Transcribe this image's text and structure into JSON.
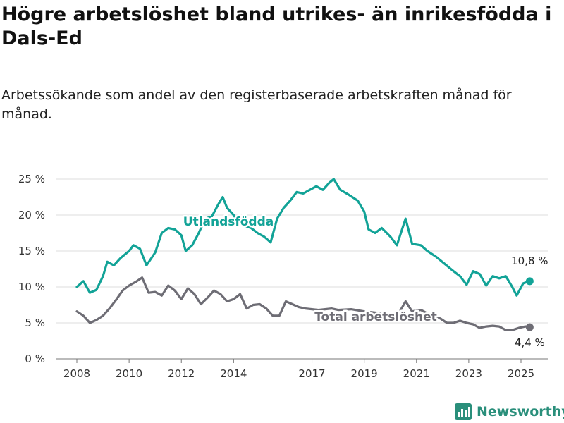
{
  "colors": {
    "foreign": "#12a397",
    "total": "#6e6d75",
    "brand": "#2a8f7b"
  },
  "chart_data": {
    "type": "line",
    "title": "Högre arbetslöshet bland utrikes- än inrikesfödda i Dals-Ed",
    "subtitle": "Arbetssökande som andel av den registerbaserade arbetskraften månad för månad.",
    "ylim": [
      0,
      25
    ],
    "y_ticks": [
      "0 %",
      "5 %",
      "10 %",
      "15 %",
      "20 %",
      "25 %"
    ],
    "y_tick_values": [
      0,
      5,
      10,
      15,
      20,
      25
    ],
    "x_ticks": [
      "2008",
      "2010",
      "2012",
      "2014",
      "2017",
      "2019",
      "2021",
      "2023",
      "2025"
    ],
    "x_tick_values": [
      "2008-01",
      "2010-01",
      "2012-01",
      "2014-01",
      "2017-01",
      "2019-01",
      "2021-01",
      "2023-01",
      "2025-01"
    ],
    "grid": true,
    "series": [
      {
        "name": "Utlandsfödda",
        "end_label": "10,8 %",
        "points": [
          [
            "2008-01",
            10.0
          ],
          [
            "2008-04",
            10.8
          ],
          [
            "2008-07",
            9.2
          ],
          [
            "2008-10",
            9.6
          ],
          [
            "2009-01",
            11.5
          ],
          [
            "2009-03",
            13.5
          ],
          [
            "2009-06",
            13.0
          ],
          [
            "2009-09",
            14.0
          ],
          [
            "2010-01",
            15.0
          ],
          [
            "2010-03",
            15.8
          ],
          [
            "2010-06",
            15.3
          ],
          [
            "2010-09",
            13.0
          ],
          [
            "2011-01",
            14.8
          ],
          [
            "2011-04",
            17.5
          ],
          [
            "2011-07",
            18.2
          ],
          [
            "2011-10",
            18.0
          ],
          [
            "2012-01",
            17.2
          ],
          [
            "2012-03",
            15.0
          ],
          [
            "2012-06",
            15.8
          ],
          [
            "2012-09",
            17.5
          ],
          [
            "2012-12",
            19.5
          ],
          [
            "2013-03",
            19.8
          ],
          [
            "2013-06",
            21.5
          ],
          [
            "2013-08",
            22.5
          ],
          [
            "2013-10",
            21.0
          ],
          [
            "2014-01",
            20.0
          ],
          [
            "2014-03",
            19.0
          ],
          [
            "2014-06",
            18.5
          ],
          [
            "2014-09",
            18.2
          ],
          [
            "2014-12",
            17.5
          ],
          [
            "2015-03",
            17.0
          ],
          [
            "2015-06",
            16.2
          ],
          [
            "2015-09",
            19.5
          ],
          [
            "2015-12",
            21.0
          ],
          [
            "2016-03",
            22.0
          ],
          [
            "2016-06",
            23.2
          ],
          [
            "2016-09",
            23.0
          ],
          [
            "2016-12",
            23.5
          ],
          [
            "2017-03",
            24.0
          ],
          [
            "2017-06",
            23.5
          ],
          [
            "2017-09",
            24.5
          ],
          [
            "2017-11",
            25.0
          ],
          [
            "2018-02",
            23.5
          ],
          [
            "2018-06",
            22.8
          ],
          [
            "2018-10",
            22.0
          ],
          [
            "2019-01",
            20.5
          ],
          [
            "2019-03",
            18.0
          ],
          [
            "2019-06",
            17.5
          ],
          [
            "2019-09",
            18.2
          ],
          [
            "2020-01",
            17.0
          ],
          [
            "2020-04",
            15.8
          ],
          [
            "2020-08",
            19.5
          ],
          [
            "2020-11",
            16.0
          ],
          [
            "2021-03",
            15.8
          ],
          [
            "2021-06",
            15.0
          ],
          [
            "2021-10",
            14.2
          ],
          [
            "2022-02",
            13.2
          ],
          [
            "2022-06",
            12.2
          ],
          [
            "2022-09",
            11.5
          ],
          [
            "2022-12",
            10.3
          ],
          [
            "2023-03",
            12.2
          ],
          [
            "2023-06",
            11.8
          ],
          [
            "2023-09",
            10.2
          ],
          [
            "2023-12",
            11.5
          ],
          [
            "2024-03",
            11.2
          ],
          [
            "2024-06",
            11.5
          ],
          [
            "2024-09",
            10.0
          ],
          [
            "2024-11",
            8.8
          ],
          [
            "2025-02",
            10.5
          ],
          [
            "2025-05",
            10.8
          ]
        ]
      },
      {
        "name": "Total arbetslöshet",
        "end_label": "4,4 %",
        "points": [
          [
            "2008-01",
            6.6
          ],
          [
            "2008-04",
            6.0
          ],
          [
            "2008-07",
            5.0
          ],
          [
            "2008-10",
            5.4
          ],
          [
            "2009-01",
            6.0
          ],
          [
            "2009-04",
            7.0
          ],
          [
            "2009-07",
            8.2
          ],
          [
            "2009-10",
            9.5
          ],
          [
            "2010-01",
            10.2
          ],
          [
            "2010-04",
            10.7
          ],
          [
            "2010-07",
            11.3
          ],
          [
            "2010-10",
            9.2
          ],
          [
            "2011-01",
            9.3
          ],
          [
            "2011-04",
            8.8
          ],
          [
            "2011-07",
            10.2
          ],
          [
            "2011-10",
            9.5
          ],
          [
            "2012-01",
            8.3
          ],
          [
            "2012-04",
            9.8
          ],
          [
            "2012-07",
            9.0
          ],
          [
            "2012-10",
            7.6
          ],
          [
            "2013-01",
            8.5
          ],
          [
            "2013-04",
            9.5
          ],
          [
            "2013-07",
            9.0
          ],
          [
            "2013-10",
            8.0
          ],
          [
            "2014-01",
            8.3
          ],
          [
            "2014-04",
            9.0
          ],
          [
            "2014-07",
            7.0
          ],
          [
            "2014-10",
            7.5
          ],
          [
            "2015-01",
            7.6
          ],
          [
            "2015-04",
            7.0
          ],
          [
            "2015-07",
            6.0
          ],
          [
            "2015-10",
            6.0
          ],
          [
            "2016-01",
            8.0
          ],
          [
            "2016-04",
            7.6
          ],
          [
            "2016-07",
            7.2
          ],
          [
            "2016-10",
            7.0
          ],
          [
            "2017-01",
            6.9
          ],
          [
            "2017-04",
            6.8
          ],
          [
            "2017-07",
            6.9
          ],
          [
            "2017-10",
            7.0
          ],
          [
            "2018-01",
            6.8
          ],
          [
            "2018-07",
            6.9
          ],
          [
            "2019-01",
            6.6
          ],
          [
            "2019-07",
            6.4
          ],
          [
            "2020-01",
            6.0
          ],
          [
            "2020-05",
            6.4
          ],
          [
            "2020-08",
            8.0
          ],
          [
            "2020-11",
            6.6
          ],
          [
            "2021-03",
            6.8
          ],
          [
            "2021-08",
            6.0
          ],
          [
            "2021-12",
            5.6
          ],
          [
            "2022-03",
            5.0
          ],
          [
            "2022-06",
            5.0
          ],
          [
            "2022-09",
            5.3
          ],
          [
            "2022-12",
            5.0
          ],
          [
            "2023-03",
            4.8
          ],
          [
            "2023-06",
            4.3
          ],
          [
            "2023-09",
            4.5
          ],
          [
            "2023-12",
            4.6
          ],
          [
            "2024-03",
            4.5
          ],
          [
            "2024-06",
            4.0
          ],
          [
            "2024-09",
            4.0
          ],
          [
            "2024-12",
            4.3
          ],
          [
            "2025-03",
            4.5
          ],
          [
            "2025-05",
            4.4
          ]
        ]
      }
    ]
  },
  "brand": {
    "name": "Newsworthy",
    "icon": "newsworthy-chart-icon"
  }
}
